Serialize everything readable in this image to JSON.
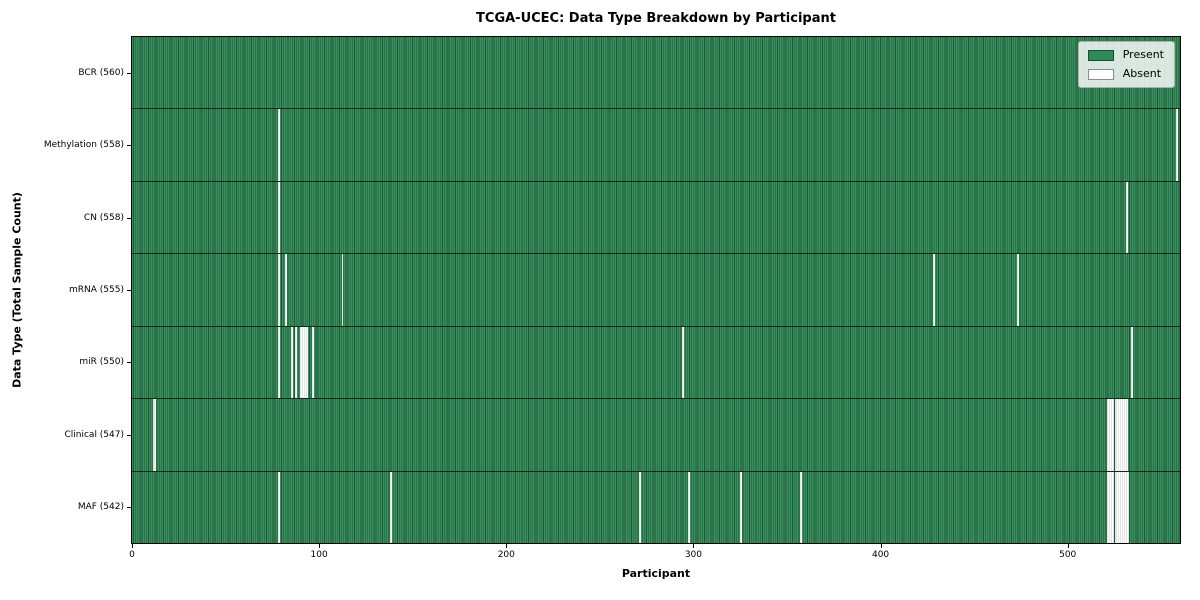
{
  "chart_data": {
    "type": "heatmap",
    "title": "TCGA-UCEC: Data Type Breakdown by Participant",
    "xlabel": "Participant",
    "ylabel": "Data Type (Total Sample Count)",
    "x_ticks": [
      0,
      100,
      200,
      300,
      400,
      500
    ],
    "x_range": [
      0,
      560
    ],
    "total_participants": 560,
    "present_color": "#2e8b57",
    "absent_color": "#ffffff",
    "grid": false,
    "legend_position": "upper right",
    "legend_entries": [
      {
        "label": "Present",
        "color": "#2e8b57"
      },
      {
        "label": "Absent",
        "color": "#ffffff"
      }
    ],
    "rows": [
      {
        "label": "BCR (560)",
        "data_type": "BCR",
        "present_count": 560,
        "absent_participants": []
      },
      {
        "label": "Methylation (558)",
        "data_type": "Methylation",
        "present_count": 558,
        "absent_participants": [
          78,
          558
        ]
      },
      {
        "label": "CN (558)",
        "data_type": "CN",
        "present_count": 558,
        "absent_participants": [
          78,
          531
        ]
      },
      {
        "label": "mRNA (555)",
        "data_type": "mRNA",
        "present_count": 555,
        "absent_participants": [
          78,
          82,
          112,
          428,
          473
        ]
      },
      {
        "label": "miR (550)",
        "data_type": "miR",
        "present_count": 550,
        "absent_participants": [
          78,
          85,
          87,
          90,
          91,
          92,
          93,
          96,
          294,
          534
        ]
      },
      {
        "label": "Clinical (547)",
        "data_type": "Clinical",
        "present_count": 547,
        "absent_participants": [
          11,
          12,
          521,
          522,
          523,
          524,
          525,
          526,
          527,
          528,
          529,
          530,
          531
        ]
      },
      {
        "label": "MAF (542)",
        "data_type": "MAF",
        "present_count": 542,
        "absent_participants": [
          78,
          138,
          271,
          297,
          325,
          357,
          521,
          522,
          523,
          524,
          525,
          526,
          527,
          528,
          529,
          530,
          531,
          532
        ]
      }
    ]
  }
}
